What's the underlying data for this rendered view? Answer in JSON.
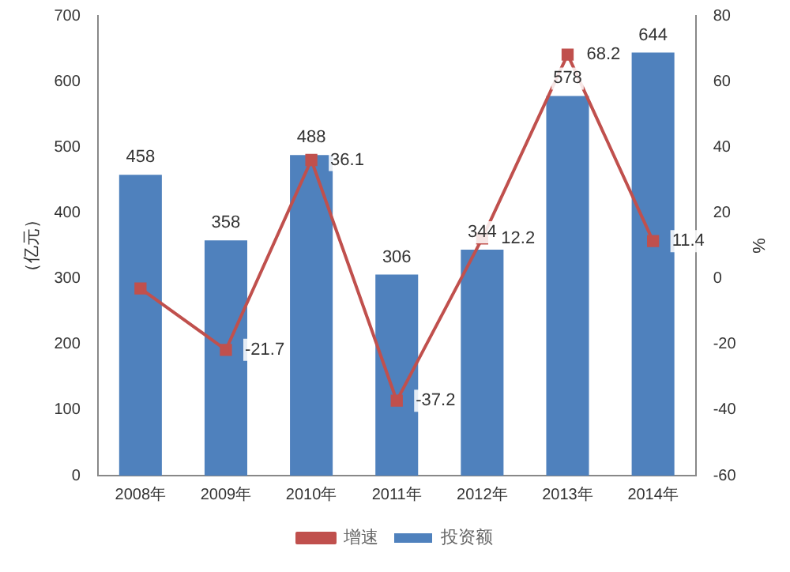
{
  "chart_data": {
    "type": "bar",
    "categories": [
      "2008年",
      "2009年",
      "2010年",
      "2011年",
      "2012年",
      "2013年",
      "2014年"
    ],
    "series": [
      {
        "name": "投资额",
        "color": "#4f81bd",
        "values": [
          458,
          358,
          488,
          306,
          344,
          578,
          644
        ],
        "value_labels": [
          "458",
          "358",
          "488",
          "306",
          "344",
          "578",
          "644"
        ]
      },
      {
        "name": "增速",
        "type": "line",
        "axis": "y2",
        "color": "#c0504d",
        "marker": "square",
        "values": [
          -3,
          -21.7,
          36.1,
          -37.2,
          12.2,
          68.2,
          11.4
        ],
        "value_labels": [
          null,
          "-21.7",
          "36.1",
          "-37.2",
          "12.2",
          "68.2",
          "11.4"
        ]
      }
    ],
    "ylabel": "（亿元）",
    "y2label": "%",
    "ylim": [
      0,
      700
    ],
    "yticks": [
      0,
      100,
      200,
      300,
      400,
      500,
      600,
      700
    ],
    "y2lim": [
      -60,
      80
    ],
    "y2ticks": [
      -60,
      -40,
      -20,
      0,
      20,
      40,
      60,
      80
    ],
    "legend": "bottom",
    "grid": false
  }
}
